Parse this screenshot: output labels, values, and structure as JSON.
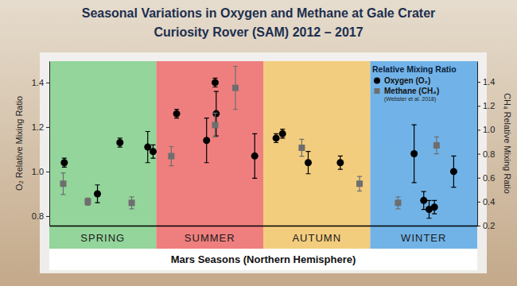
{
  "chart_data": {
    "type": "scatter",
    "title": "Seasonal Variations in Oxygen and Methane at Gale Crater",
    "subtitle": "Curiosity Rover (SAM) 2012 – 2017",
    "x_label": "Mars Seasons (Northern Hemisphere)",
    "y_label": "O₂ Relative Mixing Ratio",
    "y2_label": "CH₄ Relative Mixing Ratio",
    "categories": [
      "SPRING",
      "SUMMER",
      "AUTUMN",
      "WINTER"
    ],
    "colors": [
      "#82d08c",
      "#ef6b6b",
      "#f3c76b",
      "#5aa8e6"
    ],
    "xlim": [
      0,
      4
    ],
    "ylim": [
      0.757,
      1.496
    ],
    "yticks": [
      0.8,
      {
        "value": 1,
        "label": "1.0"
      },
      1.2,
      1.4
    ],
    "y2lim": [
      0.2,
      1.573
    ],
    "y2ticks": [
      0.2,
      0.4,
      0.6,
      0.8,
      {
        "value": 1,
        "label": "1.0"
      },
      1.2,
      1.4
    ],
    "grid": false,
    "legend": "upper right",
    "legend_title": "Relative Mixing Ratio",
    "annotations": [
      "(Webster et al. 2018)"
    ],
    "series": [
      {
        "name": "Oxygen (O₂)",
        "color": "#000000",
        "marker": "circle",
        "x": [
          0.14,
          0.45,
          0.66,
          0.92,
          0.97,
          1.19,
          1.47,
          1.55,
          1.56,
          1.92,
          2.12,
          2.18,
          2.42,
          2.72,
          3.41,
          3.5,
          3.55,
          3.6,
          3.78
        ],
        "values": [
          1.04,
          0.9,
          1.13,
          1.11,
          1.09,
          1.26,
          1.14,
          1.4,
          1.26,
          1.07,
          1.15,
          1.17,
          1.04,
          1.04,
          1.08,
          0.87,
          0.83,
          0.84,
          1.0
        ],
        "errors": [
          0.02,
          0.04,
          0.02,
          0.07,
          0.03,
          0.02,
          0.1,
          0.02,
          0.1,
          0.1,
          0.02,
          0.02,
          0.05,
          0.03,
          0.13,
          0.04,
          0.04,
          0.03,
          0.07
        ]
      },
      {
        "name": "Methane (CH₄)",
        "color": "#6e6e6e",
        "marker": "square",
        "axis": "y2",
        "x": [
          0.13,
          0.36,
          0.77,
          1.14,
          1.55,
          1.74,
          2.36,
          2.9,
          3.26,
          3.62
        ],
        "values": [
          0.55,
          0.4,
          0.39,
          0.78,
          1.04,
          1.35,
          0.85,
          0.55,
          0.39,
          0.87
        ],
        "errors": [
          0.09,
          0.03,
          0.05,
          0.08,
          0.1,
          0.18,
          0.07,
          0.06,
          0.05,
          0.07
        ]
      }
    ]
  }
}
